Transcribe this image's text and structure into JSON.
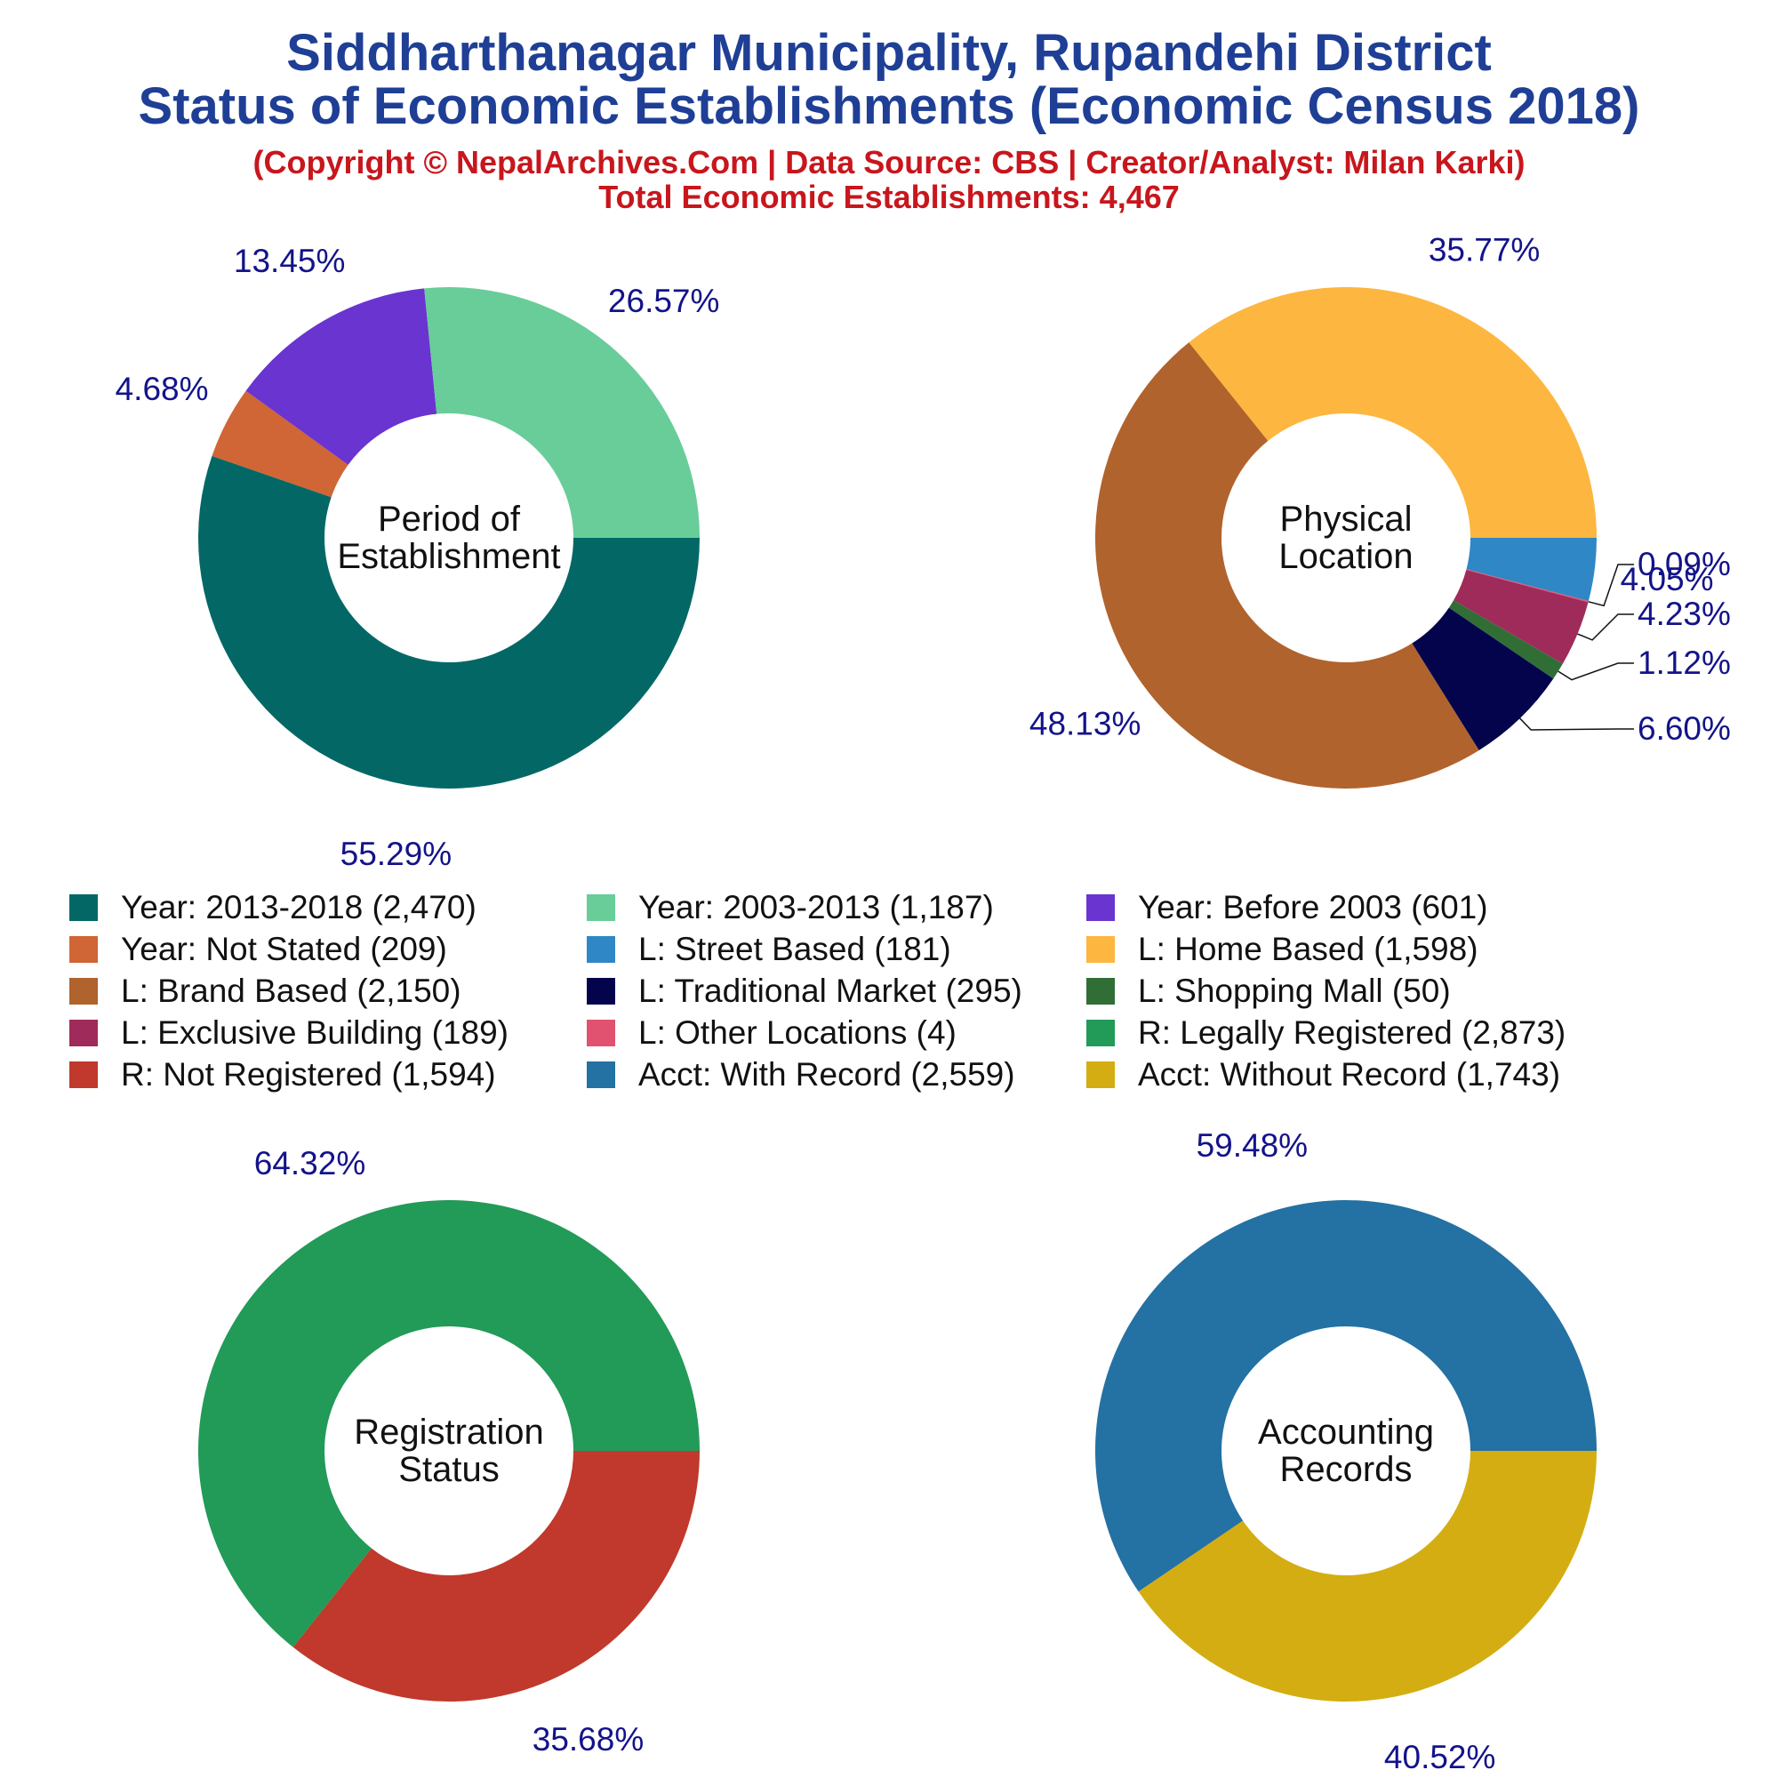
{
  "header": {
    "title_line1": "Siddharthanagar Municipality, Rupandehi District",
    "title_line2": "Status of Economic Establishments (Economic Census 2018)",
    "subtitle": "(Copyright © NepalArchives.Com | Data Source: CBS | Creator/Analyst: Milan Karki)",
    "total": "Total Economic Establishments: 4,467"
  },
  "colors": {
    "title": "#1f3f96",
    "subtitle": "#c8161d",
    "percent_label": "#13138a",
    "center_label": "#111111"
  },
  "chart_data": [
    {
      "type": "pie",
      "donut": true,
      "center_label": [
        "Period of",
        "Establishment"
      ],
      "slices": [
        {
          "label": "Year: 2013-2018",
          "value": 2470,
          "percent": "55.29%",
          "color": "#036865"
        },
        {
          "label": "Year: Not Stated",
          "value": 209,
          "percent": "4.68%",
          "color": "#d06535"
        },
        {
          "label": "Year: Before 2003",
          "value": 601,
          "percent": "13.45%",
          "color": "#6a34d0"
        },
        {
          "label": "Year: 2003-2013",
          "value": 1187,
          "percent": "26.57%",
          "color": "#68cd99"
        }
      ]
    },
    {
      "type": "pie",
      "donut": true,
      "center_label": [
        "Physical",
        "Location"
      ],
      "slices": [
        {
          "label": "L: Street Based",
          "value": 181,
          "percent": "4.05%",
          "color": "#2f87c5"
        },
        {
          "label": "L: Other Locations",
          "value": 4,
          "percent": "0.09%",
          "color": "#e15270"
        },
        {
          "label": "L: Exclusive Building",
          "value": 189,
          "percent": "4.23%",
          "color": "#9e2b5a"
        },
        {
          "label": "L: Shopping Mall",
          "value": 50,
          "percent": "1.12%",
          "color": "#316e36"
        },
        {
          "label": "L: Traditional Market",
          "value": 295,
          "percent": "6.60%",
          "color": "#04044c"
        },
        {
          "label": "L: Brand Based",
          "value": 2150,
          "percent": "48.13%",
          "color": "#b0632d"
        },
        {
          "label": "L: Home Based",
          "value": 1598,
          "percent": "35.77%",
          "color": "#fdb63f"
        }
      ]
    },
    {
      "type": "pie",
      "donut": true,
      "center_label": [
        "Registration",
        "Status"
      ],
      "slices": [
        {
          "label": "R: Not Registered",
          "value": 1594,
          "percent": "35.68%",
          "color": "#c0392c"
        },
        {
          "label": "R: Legally Registered",
          "value": 2873,
          "percent": "64.32%",
          "color": "#229a58"
        }
      ]
    },
    {
      "type": "pie",
      "donut": true,
      "center_label": [
        "Accounting",
        "Records"
      ],
      "slices": [
        {
          "label": "Acct: Without Record",
          "value": 1743,
          "percent": "40.52%",
          "color": "#d4ad12"
        },
        {
          "label": "Acct: With Record",
          "value": 2559,
          "percent": "59.48%",
          "color": "#2471a3"
        }
      ]
    }
  ],
  "legend": [
    {
      "label": "Year: 2013-2018 (2,470)",
      "color": "#036865"
    },
    {
      "label": "Year: 2003-2013 (1,187)",
      "color": "#68cd99"
    },
    {
      "label": "Year: Before 2003 (601)",
      "color": "#6a34d0"
    },
    {
      "label": "Year: Not Stated (209)",
      "color": "#d06535"
    },
    {
      "label": "L: Street Based (181)",
      "color": "#2f87c5"
    },
    {
      "label": "L: Home Based (1,598)",
      "color": "#fdb63f"
    },
    {
      "label": "L: Brand Based (2,150)",
      "color": "#b0632d"
    },
    {
      "label": "L: Traditional Market (295)",
      "color": "#04044c"
    },
    {
      "label": "L: Shopping Mall (50)",
      "color": "#316e36"
    },
    {
      "label": "L: Exclusive Building (189)",
      "color": "#9e2b5a"
    },
    {
      "label": "L: Other Locations (4)",
      "color": "#e15270"
    },
    {
      "label": "R: Legally Registered (2,873)",
      "color": "#229a58"
    },
    {
      "label": "R: Not Registered (1,594)",
      "color": "#c0392c"
    },
    {
      "label": "Acct: With Record (2,559)",
      "color": "#2471a3"
    },
    {
      "label": "Acct: Without Record (1,743)",
      "color": "#d4ad12"
    }
  ]
}
